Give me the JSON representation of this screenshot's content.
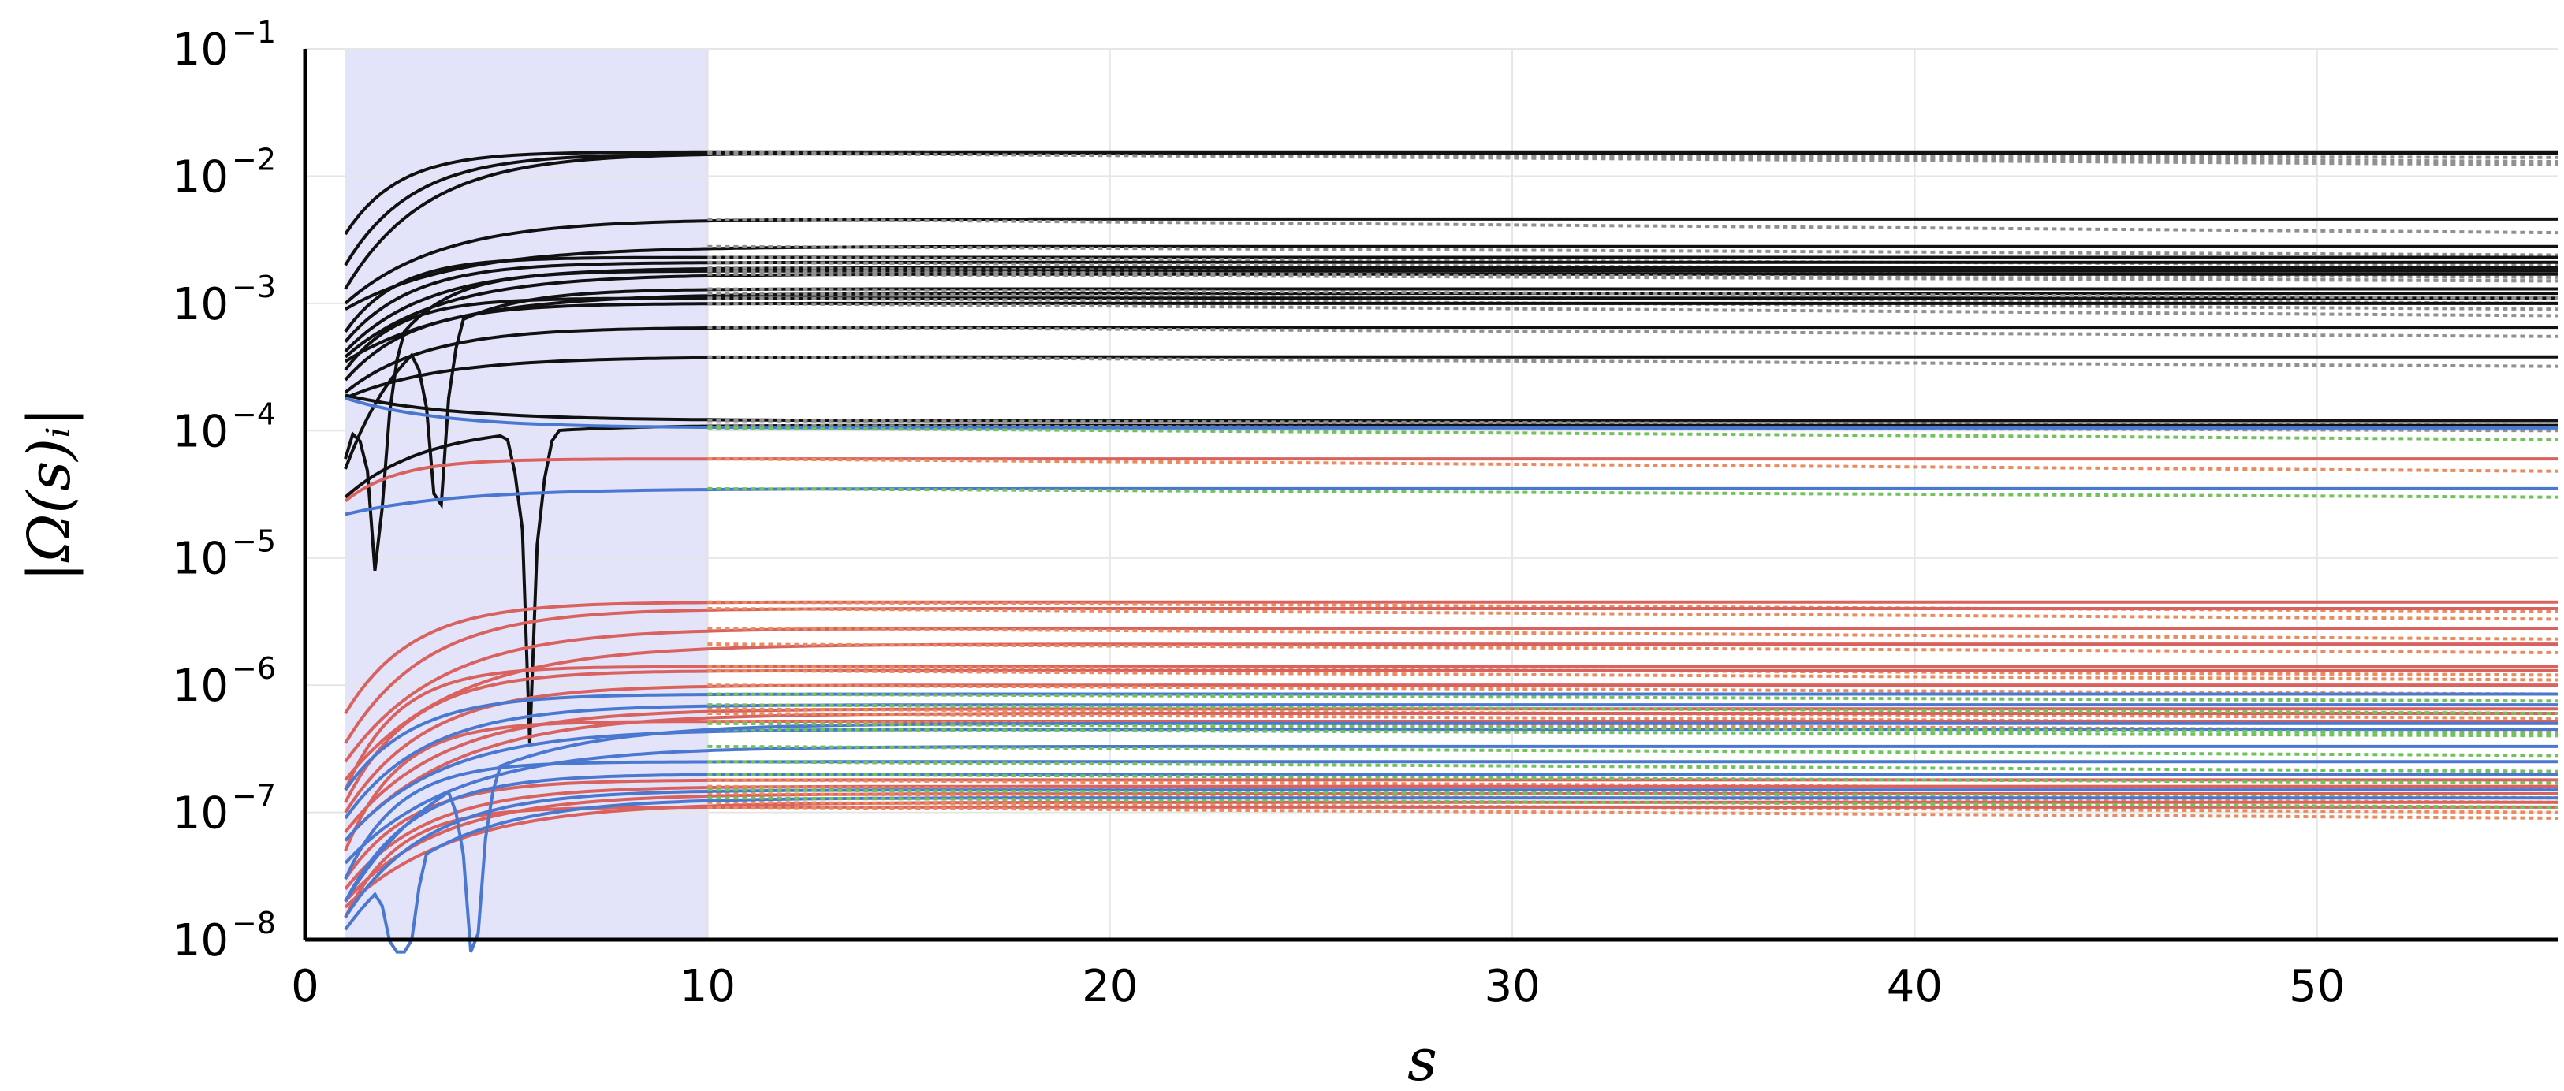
{
  "chart_data": {
    "type": "line",
    "title": "",
    "xlabel": "s",
    "ylabel": "|Ω(s)ᵢ|",
    "xlim": [
      0,
      56
    ],
    "ylim": [
      1e-08,
      0.1
    ],
    "y_scale": "log",
    "grid": true,
    "legend": "none",
    "x_ticks": [
      "0",
      "10",
      "20",
      "30",
      "40",
      "50"
    ],
    "y_ticks": [
      {
        "base": "10",
        "exp": "−1"
      },
      {
        "base": "10",
        "exp": "−2"
      },
      {
        "base": "10",
        "exp": "−3"
      },
      {
        "base": "10",
        "exp": "−4"
      },
      {
        "base": "10",
        "exp": "−5"
      },
      {
        "base": "10",
        "exp": "−6"
      },
      {
        "base": "10",
        "exp": "−7"
      },
      {
        "base": "10",
        "exp": "−8"
      }
    ],
    "shaded_region": {
      "x_range": [
        1,
        10
      ],
      "color": "#e3e3fa"
    },
    "colors": {
      "black": "#111111",
      "gray_dotted": "#909090",
      "red": "#d9625f",
      "blue": "#4a78d0",
      "green_dotted": "#72c25c",
      "orange_dashed": "#ea8a5e",
      "grid": "#e6e6e6"
    },
    "series": [
      {
        "group": "black",
        "plateau": 0.0155,
        "start": 0.0035,
        "dotted_end": 0.013
      },
      {
        "group": "black",
        "plateau": 0.015,
        "start": 0.002,
        "dotted_end": 0.014
      },
      {
        "group": "black",
        "plateau": 0.0152,
        "start": 0.0013,
        "dotted_end": 0.0123
      },
      {
        "group": "black",
        "plateau": 0.0046,
        "start": 0.001,
        "dotted_end": 0.0036
      },
      {
        "group": "black",
        "plateau": 0.0028,
        "start": 0.0009,
        "dotted_end": 0.0024
      },
      {
        "group": "black",
        "plateau": 0.0023,
        "start": 0.0006,
        "dotted_end": 0.002
      },
      {
        "group": "black",
        "plateau": 0.0021,
        "start": 0.0005,
        "dotted_end": 0.0018
      },
      {
        "group": "black",
        "plateau": 0.0019,
        "start": 0.00042,
        "dotted_end": 0.0016
      },
      {
        "group": "black",
        "plateau": 0.0017,
        "start": 0.00038,
        "dotted_end": 0.0015
      },
      {
        "group": "black",
        "plateau": 0.0012,
        "start": 0.00035,
        "dotted_end": 0.001
      },
      {
        "group": "black",
        "plateau": 0.0011,
        "start": 0.0003,
        "dotted_end": 0.0009
      },
      {
        "group": "black",
        "plateau": 0.001,
        "start": 0.00025,
        "dotted_end": 0.0008
      },
      {
        "group": "black",
        "plateau": 0.00065,
        "start": 0.0002,
        "dotted_end": 0.00055
      },
      {
        "group": "black",
        "plateau": 0.00038,
        "start": 0.00018,
        "dotted_end": 0.00032
      },
      {
        "group": "black",
        "plateau": 0.00012,
        "start": 0.00019,
        "dotted_end": 0.00011
      },
      {
        "group": "black",
        "plateau": 0.0018,
        "start": 6e-05,
        "dip": 1.8,
        "dotted_end": 0.0015
      },
      {
        "group": "black",
        "plateau": 0.0013,
        "start": 5e-05,
        "dip": 3.3,
        "dotted_end": 0.0011
      },
      {
        "group": "black",
        "plateau": 0.00011,
        "start": 3e-05,
        "dip": 5.6,
        "dotted_end": 0.0001
      },
      {
        "group": "blue",
        "plateau": 0.000105,
        "start": 0.00018,
        "dotted_end": 8.5e-05
      },
      {
        "group": "blue",
        "plateau": 3.5e-05,
        "start": 2.2e-05,
        "dotted_end": 3e-05
      },
      {
        "group": "red",
        "plateau": 6e-05,
        "start": 2.8e-05,
        "dotted_end": 4.8e-05
      },
      {
        "group": "red",
        "plateau": 4.5e-06,
        "start": 6e-07,
        "dotted_end": 3.8e-06
      },
      {
        "group": "red",
        "plateau": 4e-06,
        "start": 3.5e-07,
        "dotted_end": 3.3e-06
      },
      {
        "group": "red",
        "plateau": 2.8e-06,
        "start": 2.5e-07,
        "dotted_end": 2.3e-06
      },
      {
        "group": "red",
        "plateau": 2.1e-06,
        "start": 1.8e-07,
        "dotted_end": 1.8e-06
      },
      {
        "group": "red",
        "plateau": 1.4e-06,
        "start": 1.5e-07,
        "dotted_end": 1.2e-06
      },
      {
        "group": "red",
        "plateau": 1.3e-06,
        "start": 1.2e-07,
        "dotted_end": 1.1e-06
      },
      {
        "group": "red",
        "plateau": 1e-06,
        "start": 1e-07,
        "dotted_end": 8.5e-07
      },
      {
        "group": "red",
        "plateau": 6.5e-07,
        "start": 7e-08,
        "dotted_end": 5.5e-07
      },
      {
        "group": "red",
        "plateau": 6e-07,
        "start": 6e-08,
        "dotted_end": 5e-07
      },
      {
        "group": "red",
        "plateau": 5.2e-07,
        "start": 5e-08,
        "dotted_end": 4.4e-07
      },
      {
        "group": "red",
        "plateau": 1.8e-07,
        "start": 3e-08,
        "dotted_end": 1.5e-07
      },
      {
        "group": "red",
        "plateau": 1.6e-07,
        "start": 2.5e-08,
        "dotted_end": 1.3e-07
      },
      {
        "group": "red",
        "plateau": 1.4e-07,
        "start": 2e-08,
        "dotted_end": 1.2e-07
      },
      {
        "group": "red",
        "plateau": 1.2e-07,
        "start": 1.8e-08,
        "dotted_end": 1e-07
      },
      {
        "group": "red",
        "plateau": 1.1e-07,
        "start": 1.5e-08,
        "dotted_end": 9e-08
      },
      {
        "group": "blue",
        "plateau": 8.5e-07,
        "start": 1.5e-07,
        "dotted_end": 7.5e-07
      },
      {
        "group": "blue",
        "plateau": 7e-07,
        "start": 9e-08,
        "dotted_end": 6e-07
      },
      {
        "group": "blue",
        "plateau": 4.5e-07,
        "start": 6e-08,
        "dotted_end": 4e-07
      },
      {
        "group": "blue",
        "plateau": 3.3e-07,
        "start": 4e-08,
        "dotted_end": 2.8e-07
      },
      {
        "group": "blue",
        "plateau": 2.5e-07,
        "start": 3e-08,
        "dotted_end": 2.1e-07
      },
      {
        "group": "blue",
        "plateau": 2e-07,
        "start": 2e-08,
        "dotted_end": 1.7e-07
      },
      {
        "group": "blue",
        "plateau": 1.5e-07,
        "start": 1.5e-08,
        "dotted_end": 1.3e-07
      },
      {
        "group": "blue",
        "plateau": 1.3e-07,
        "start": 1.2e-08,
        "dip": 2.4,
        "dotted_end": 1.1e-07
      },
      {
        "group": "blue",
        "plateau": 5e-07,
        "start": 2e-08,
        "dip": 4.2,
        "dotted_end": 4.2e-07
      }
    ]
  }
}
